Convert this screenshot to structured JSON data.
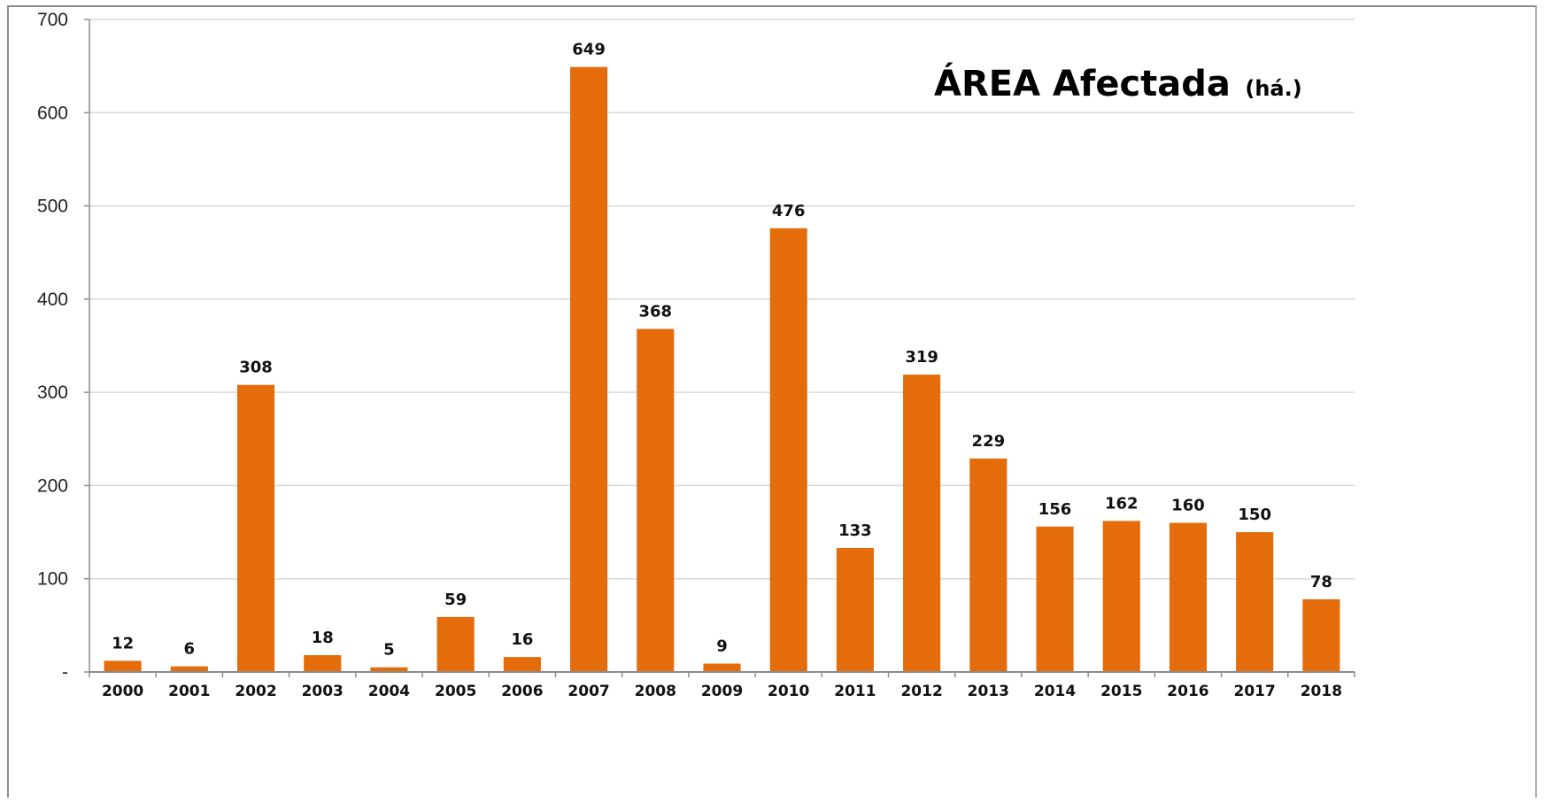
{
  "chart_data": {
    "type": "bar",
    "title": "ÁREA Afectada",
    "title_unit": "(há.)",
    "xlabel": "",
    "ylabel": "",
    "categories": [
      "2000",
      "2001",
      "2002",
      "2003",
      "2004",
      "2005",
      "2006",
      "2007",
      "2008",
      "2009",
      "2010",
      "2011",
      "2012",
      "2013",
      "2014",
      "2015",
      "2016",
      "2017",
      "2018"
    ],
    "values": [
      12,
      6,
      308,
      18,
      5,
      59,
      16,
      649,
      368,
      9,
      476,
      133,
      319,
      229,
      156,
      162,
      160,
      150,
      78
    ],
    "data_labels": [
      "12",
      "6",
      "308",
      "18",
      "5",
      "59",
      "16",
      "649",
      "368",
      "9",
      "476",
      "133",
      "319",
      "229",
      "156",
      "162",
      "160",
      "150",
      "78"
    ],
    "ylim": [
      0,
      700
    ],
    "yticks": [
      0,
      100,
      200,
      300,
      400,
      500,
      600,
      700
    ],
    "ytick_labels": [
      "-",
      "100",
      "200",
      "300",
      "400",
      "500",
      "600",
      "700"
    ],
    "grid": "horizontal",
    "legend": "none",
    "bar_color": "#E46C0A",
    "grid_color": "#d9d9d9",
    "axis_color": "#8c8c8c"
  }
}
